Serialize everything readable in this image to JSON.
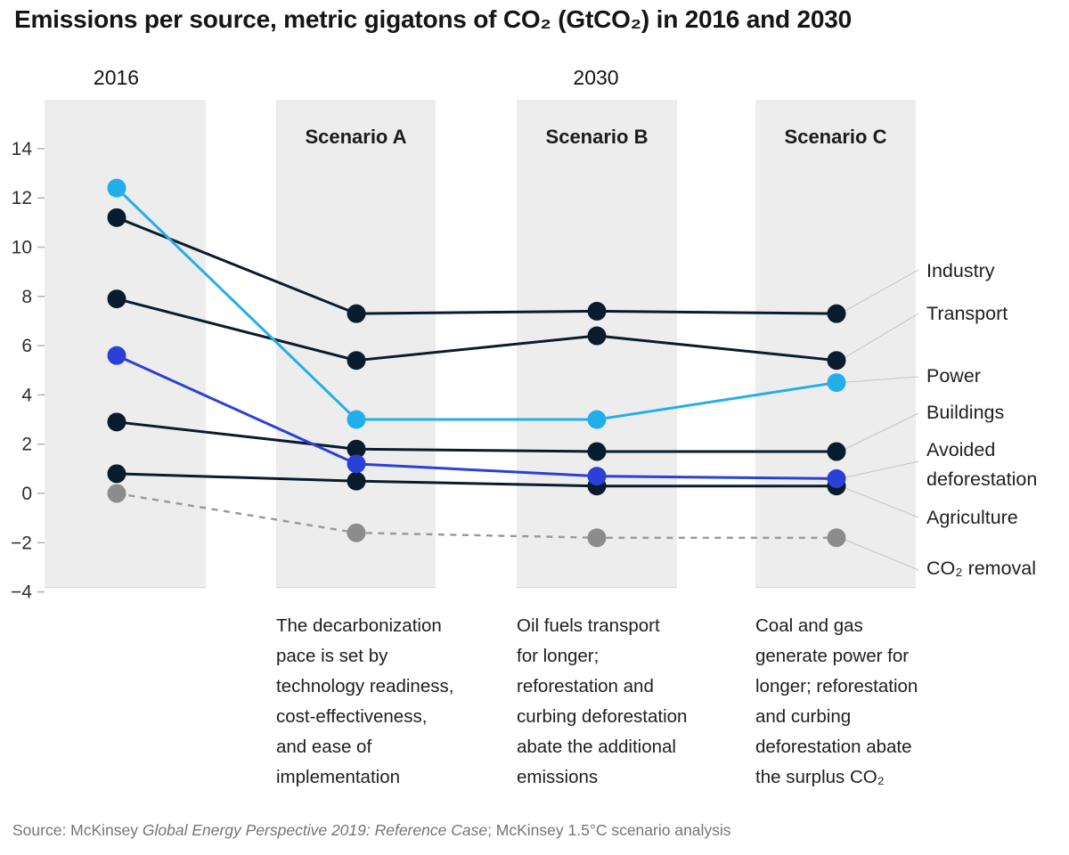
{
  "title": "Emissions per source, metric gigatons of CO₂ (GtCO₂) in 2016 and 2030",
  "chart_data": {
    "type": "line",
    "unit": "GtCO₂",
    "title": "Emissions per source, metric gigatons of CO₂ (GtCO₂) in 2016 and 2030",
    "categories": [
      "2016",
      "Scenario A",
      "Scenario B",
      "Scenario C"
    ],
    "column_headers": {
      "left": "2016",
      "right": "2030"
    },
    "scenario_labels": [
      "Scenario A",
      "Scenario B",
      "Scenario C"
    ],
    "series": [
      {
        "name": "Industry",
        "color": "#081c2e",
        "dashed": false,
        "values": [
          11.2,
          7.3,
          7.4,
          7.3
        ]
      },
      {
        "name": "Transport",
        "color": "#081c2e",
        "dashed": false,
        "values": [
          7.9,
          5.4,
          6.4,
          5.4
        ]
      },
      {
        "name": "Buildings",
        "color": "#081c2e",
        "dashed": false,
        "values": [
          2.9,
          1.8,
          1.7,
          1.7
        ]
      },
      {
        "name": "Agriculture",
        "color": "#081c2e",
        "dashed": false,
        "values": [
          0.8,
          0.5,
          0.3,
          0.3
        ]
      },
      {
        "name": "CO₂ removal",
        "color": "#8c8c8c",
        "dashed": true,
        "values": [
          0.0,
          -1.6,
          -1.8,
          -1.8
        ]
      },
      {
        "name": "Avoided deforestation",
        "color": "#2b40d6",
        "dashed": false,
        "values": [
          5.6,
          1.2,
          0.7,
          0.6
        ]
      },
      {
        "name": "Power",
        "color": "#24aee9",
        "dashed": false,
        "values": [
          12.4,
          3.0,
          3.0,
          4.5
        ]
      }
    ],
    "ylim": [
      -4,
      16
    ],
    "yticks": [
      14,
      12,
      10,
      8,
      6,
      4,
      2,
      0,
      -2,
      -4
    ],
    "grid": false,
    "legend_position": "right",
    "band_color": "#ededed"
  },
  "scenarios": [
    {
      "label": "Scenario A",
      "description": "The decarbonization\npace is set by\ntechnology readiness,\ncost-effectiveness,\nand ease of\nimplementation"
    },
    {
      "label": "Scenario B",
      "description": "Oil fuels transport\nfor longer;\nreforestation and\ncurbing deforestation\nabate the additional\nemissions"
    },
    {
      "label": "Scenario C",
      "description": "Coal and gas\ngenerate power for\nlonger; reforestation\nand curbing\ndeforestation abate\nthe surplus CO₂"
    }
  ],
  "source": {
    "prefix": "Source: McKinsey ",
    "italic": "Global Energy Perspective 2019: Reference Case",
    "suffix": "; McKinsey 1.5°C scenario analysis"
  }
}
